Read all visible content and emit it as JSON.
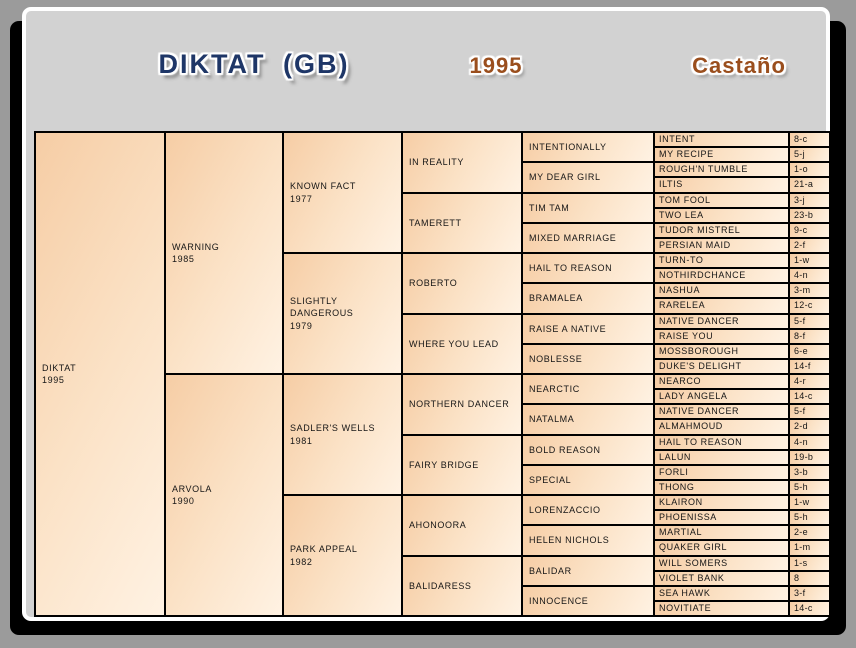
{
  "header": {
    "title": "DIKTAT (GB)",
    "year": "1995",
    "coat": "Castaño"
  },
  "colors": {
    "title_navy": "#1e3667",
    "header_brown": "#9a4e1d",
    "cell_gradient_start": "#f6cda5",
    "cell_gradient_end": "#fff2e3",
    "grid_border": "#000000",
    "panel_gray": "#d2d2d2",
    "page_gray": "#9b9b9b"
  },
  "pedigree": {
    "gen1": [
      {
        "name": "DIKTAT",
        "year": "1995"
      }
    ],
    "gen2": [
      {
        "name": "WARNING",
        "year": "1985"
      },
      {
        "name": "ARVOLA",
        "year": "1990"
      }
    ],
    "gen3": [
      {
        "name": "KNOWN FACT",
        "year": "1977"
      },
      {
        "name": "SLIGHTLY DANGEROUS",
        "year": "1979"
      },
      {
        "name": "SADLER'S WELLS",
        "year": "1981"
      },
      {
        "name": "PARK APPEAL",
        "year": "1982"
      }
    ],
    "gen4": [
      {
        "name": "IN REALITY"
      },
      {
        "name": "TAMERETT"
      },
      {
        "name": "ROBERTO"
      },
      {
        "name": "WHERE YOU LEAD"
      },
      {
        "name": "NORTHERN DANCER"
      },
      {
        "name": "FAIRY BRIDGE"
      },
      {
        "name": "AHONOORA"
      },
      {
        "name": "BALIDARESS"
      }
    ],
    "gen5": [
      {
        "name": "INTENTIONALLY"
      },
      {
        "name": "MY DEAR GIRL"
      },
      {
        "name": "TIM TAM"
      },
      {
        "name": "MIXED MARRIAGE"
      },
      {
        "name": "HAIL TO REASON"
      },
      {
        "name": "BRAMALEA"
      },
      {
        "name": "RAISE A NATIVE"
      },
      {
        "name": "NOBLESSE"
      },
      {
        "name": "NEARCTIC"
      },
      {
        "name": "NATALMA"
      },
      {
        "name": "BOLD REASON"
      },
      {
        "name": "SPECIAL"
      },
      {
        "name": "LORENZACCIO"
      },
      {
        "name": "HELEN NICHOLS"
      },
      {
        "name": "BALIDAR"
      },
      {
        "name": "INNOCENCE"
      }
    ],
    "gen6": [
      {
        "name": "INTENT",
        "family": "8-c"
      },
      {
        "name": "MY RECIPE",
        "family": "5-j"
      },
      {
        "name": "ROUGH'N TUMBLE",
        "family": "1-o"
      },
      {
        "name": "ILTIS",
        "family": "21-a"
      },
      {
        "name": "TOM FOOL",
        "family": "3-j"
      },
      {
        "name": "TWO LEA",
        "family": "23-b"
      },
      {
        "name": "TUDOR MISTREL",
        "family": "9-c"
      },
      {
        "name": "PERSIAN MAID",
        "family": "2-f"
      },
      {
        "name": "TURN-TO",
        "family": "1-w"
      },
      {
        "name": "NOTHIRDCHANCE",
        "family": "4-n"
      },
      {
        "name": "NASHUA",
        "family": "3-m"
      },
      {
        "name": "RARELEA",
        "family": "12-c"
      },
      {
        "name": "NATIVE DANCER",
        "family": "5-f"
      },
      {
        "name": "RAISE YOU",
        "family": "8-f"
      },
      {
        "name": "MOSSBOROUGH",
        "family": "6-e"
      },
      {
        "name": "DUKE'S DELIGHT",
        "family": "14-f"
      },
      {
        "name": "NEARCO",
        "family": "4-r"
      },
      {
        "name": "LADY ANGELA",
        "family": "14-c"
      },
      {
        "name": "NATIVE DANCER",
        "family": "5-f"
      },
      {
        "name": "ALMAHMOUD",
        "family": "2-d"
      },
      {
        "name": "HAIL TO REASON",
        "family": "4-n"
      },
      {
        "name": "LALUN",
        "family": "19-b"
      },
      {
        "name": "FORLI",
        "family": "3-b"
      },
      {
        "name": "THONG",
        "family": "5-h"
      },
      {
        "name": "KLAIRON",
        "family": "1-w"
      },
      {
        "name": "PHOENISSA",
        "family": "5-h"
      },
      {
        "name": "MARTIAL",
        "family": "2-e"
      },
      {
        "name": "QUAKER GIRL",
        "family": "1-m"
      },
      {
        "name": "WILL SOMERS",
        "family": "1-s"
      },
      {
        "name": "VIOLET BANK",
        "family": "8"
      },
      {
        "name": "SEA HAWK",
        "family": "3-f"
      },
      {
        "name": "NOVITIATE",
        "family": "14-c"
      }
    ]
  }
}
